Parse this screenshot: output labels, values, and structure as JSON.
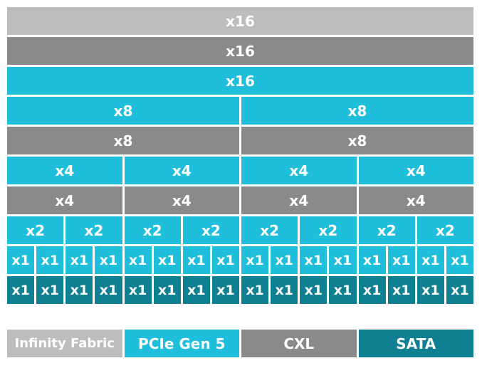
{
  "colors": {
    "infinity_fabric": "#bdbdbd",
    "pcie_gen5": "#1fbfdc",
    "cxl": "#8a8a8a",
    "sata": "#0f8091"
  },
  "rows": [
    {
      "lanes": "x16",
      "count": 1,
      "protocol": "infinity_fabric"
    },
    {
      "lanes": "x16",
      "count": 1,
      "protocol": "cxl"
    },
    {
      "lanes": "x16",
      "count": 1,
      "protocol": "pcie_gen5"
    },
    {
      "lanes": "x8",
      "count": 2,
      "protocol": "pcie_gen5"
    },
    {
      "lanes": "x8",
      "count": 2,
      "protocol": "cxl"
    },
    {
      "lanes": "x4",
      "count": 4,
      "protocol": "pcie_gen5"
    },
    {
      "lanes": "x4",
      "count": 4,
      "protocol": "cxl"
    },
    {
      "lanes": "x2",
      "count": 8,
      "protocol": "pcie_gen5"
    },
    {
      "lanes": "x1",
      "count": 16,
      "protocol": "pcie_gen5"
    },
    {
      "lanes": "x1",
      "count": 16,
      "protocol": "sata"
    }
  ],
  "legend": [
    {
      "label": "Infinity Fabric",
      "protocol": "infinity_fabric"
    },
    {
      "label": "PCIe Gen 5",
      "protocol": "pcie_gen5"
    },
    {
      "label": "CXL",
      "protocol": "cxl"
    },
    {
      "label": "SATA",
      "protocol": "sata"
    }
  ]
}
